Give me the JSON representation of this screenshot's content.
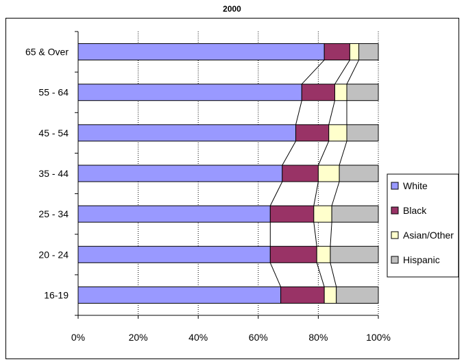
{
  "chart_data": {
    "type": "bar",
    "stacked": true,
    "orientation": "horizontal",
    "normalized": "percent",
    "title": "2000",
    "categories": [
      "65 & Over",
      "55 - 64",
      "45 - 54",
      "35 - 44",
      "25 - 34",
      "20 - 24",
      "16-19"
    ],
    "series": [
      {
        "name": "White",
        "color": "#9999ff",
        "values": [
          82.0,
          74.5,
          72.5,
          68.0,
          64.0,
          64.0,
          67.5
        ]
      },
      {
        "name": "Black",
        "color": "#993366",
        "values": [
          8.5,
          11.0,
          11.0,
          12.0,
          14.5,
          15.5,
          14.5
        ]
      },
      {
        "name": "Asian/Other",
        "color": "#ffffcc",
        "values": [
          3.0,
          4.0,
          6.0,
          7.0,
          6.0,
          4.5,
          4.0
        ]
      },
      {
        "name": "Hispanic",
        "color": "#c0c0c0",
        "values": [
          6.5,
          10.5,
          10.5,
          13.0,
          15.5,
          16.0,
          14.0
        ]
      }
    ],
    "xlim": [
      0,
      100
    ],
    "xticks": [
      "0%",
      "20%",
      "40%",
      "60%",
      "80%",
      "100%"
    ],
    "grid": "vertical dotted",
    "series_lines": true,
    "legend": "right"
  }
}
